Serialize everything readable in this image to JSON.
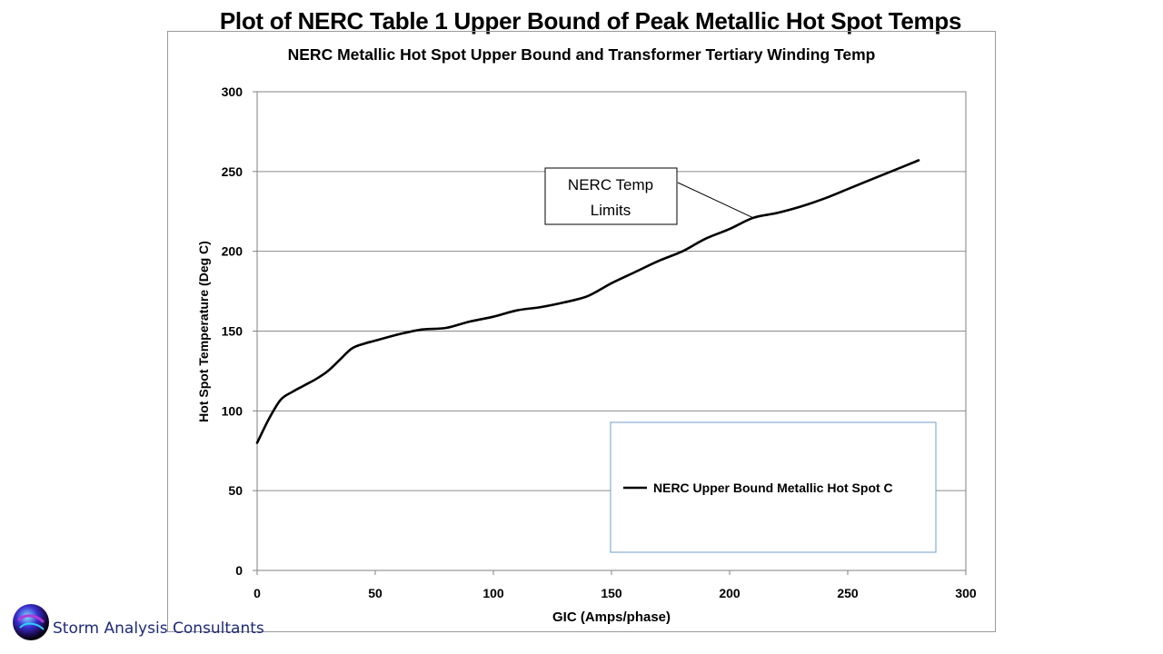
{
  "slide": {
    "title": "Plot of  NERC Table 1 Upper Bound of Peak Metallic Hot Spot Temps",
    "company": "Storm Analysis Consultants",
    "logo_icon": "storm-globe-icon"
  },
  "chart_data": {
    "type": "line",
    "title": "NERC Metallic Hot Spot Upper Bound and Transformer Tertiary Winding Temp",
    "xlabel": "GIC (Amps/phase)",
    "ylabel": "Hot Spot Temperature (Deg C)",
    "xlim": [
      0,
      300
    ],
    "ylim": [
      0,
      300
    ],
    "xticks": [
      0,
      50,
      100,
      150,
      200,
      250,
      300
    ],
    "yticks": [
      0,
      50,
      100,
      150,
      200,
      250,
      300
    ],
    "grid": "horizontal",
    "legend_position": "bottom-right",
    "series": [
      {
        "name": "NERC Upper Bound Metallic Hot Spot C",
        "color": "#000000",
        "x": [
          0,
          5,
          10,
          15,
          20,
          25,
          30,
          35,
          40,
          45,
          50,
          60,
          70,
          80,
          90,
          100,
          110,
          120,
          130,
          140,
          150,
          160,
          170,
          180,
          190,
          200,
          210,
          220,
          230,
          240,
          250,
          260,
          270,
          280
        ],
        "y": [
          80,
          95,
          107,
          112,
          116,
          120,
          125,
          132,
          139,
          142,
          144,
          148,
          151,
          152,
          156,
          159,
          163,
          165,
          168,
          172,
          180,
          187,
          194,
          200,
          208,
          214,
          221,
          224,
          228,
          233,
          239,
          245,
          251,
          257
        ]
      }
    ],
    "annotation": {
      "text_line1": "NERC Temp",
      "text_line2": "Limits",
      "points_to": [
        210,
        221
      ]
    }
  }
}
